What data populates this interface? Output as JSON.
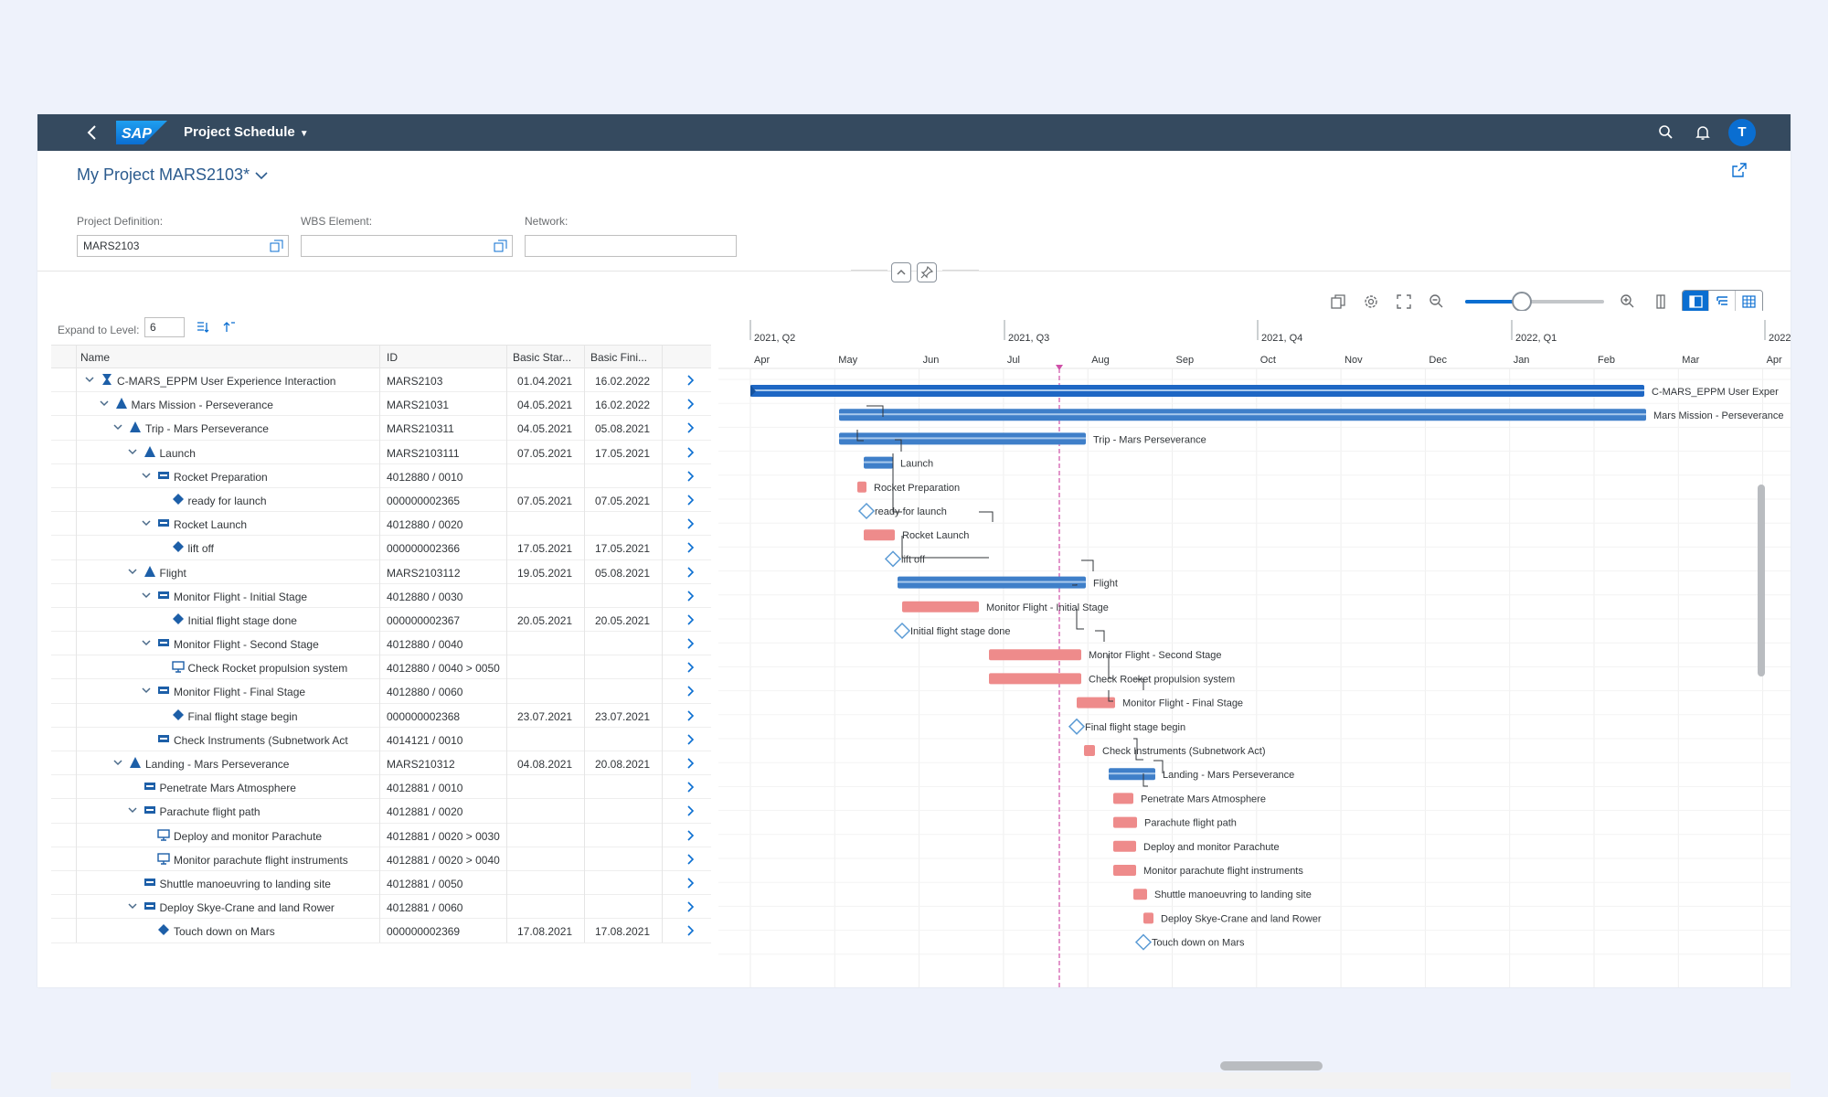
{
  "shell": {
    "title": "Project Schedule",
    "avatar_initial": "T",
    "logo_text": "SAP"
  },
  "header": {
    "project_title": "My Project MARS2103*",
    "fields": {
      "project_definition_label": "Project Definition:",
      "project_definition_value": "MARS2103",
      "wbs_label": "WBS Element:",
      "wbs_value": "",
      "network_label": "Network:",
      "network_value": ""
    }
  },
  "tree_toolbar": {
    "expand_label": "Expand to Level:",
    "expand_value": "6"
  },
  "table": {
    "columns": [
      "Name",
      "ID",
      "Basic Star...",
      "Basic Fini..."
    ],
    "rows": [
      {
        "level": 0,
        "type": "project",
        "expand": true,
        "name": "C-MARS_EPPM User Experience Interaction",
        "id": "MARS2103",
        "start": "01.04.2021",
        "finish": "16.02.2022"
      },
      {
        "level": 1,
        "type": "wbs",
        "expand": true,
        "name": "Mars Mission - Perseverance",
        "id": "MARS21031",
        "start": "04.05.2021",
        "finish": "16.02.2022"
      },
      {
        "level": 2,
        "type": "wbs",
        "expand": true,
        "name": "Trip - Mars Perseverance",
        "id": "MARS210311",
        "start": "04.05.2021",
        "finish": "05.08.2021"
      },
      {
        "level": 3,
        "type": "wbs",
        "expand": true,
        "name": "Launch",
        "id": "MARS2103111",
        "start": "07.05.2021",
        "finish": "17.05.2021"
      },
      {
        "level": 4,
        "type": "activity",
        "expand": true,
        "name": "Rocket Preparation",
        "id": "4012880 / 0010",
        "start": "",
        "finish": ""
      },
      {
        "level": 5,
        "type": "milestone",
        "expand": false,
        "name": "ready for launch",
        "id": "000000002365",
        "start": "07.05.2021",
        "finish": "07.05.2021"
      },
      {
        "level": 4,
        "type": "activity",
        "expand": true,
        "name": "Rocket Launch",
        "id": "4012880 / 0020",
        "start": "",
        "finish": ""
      },
      {
        "level": 5,
        "type": "milestone",
        "expand": false,
        "name": "lift off",
        "id": "000000002366",
        "start": "17.05.2021",
        "finish": "17.05.2021"
      },
      {
        "level": 3,
        "type": "wbs",
        "expand": true,
        "name": "Flight",
        "id": "MARS2103112",
        "start": "19.05.2021",
        "finish": "05.08.2021"
      },
      {
        "level": 4,
        "type": "activity",
        "expand": true,
        "name": "Monitor Flight - Initial Stage",
        "id": "4012880 / 0030",
        "start": "",
        "finish": ""
      },
      {
        "level": 5,
        "type": "milestone",
        "expand": false,
        "name": "Initial flight stage done",
        "id": "000000002367",
        "start": "20.05.2021",
        "finish": "20.05.2021"
      },
      {
        "level": 4,
        "type": "activity",
        "expand": true,
        "name": "Monitor Flight - Second Stage",
        "id": "4012880 / 0040",
        "start": "",
        "finish": ""
      },
      {
        "level": 5,
        "type": "element",
        "expand": false,
        "name": "Check Rocket propulsion system",
        "id": "4012880 / 0040 > 0050",
        "start": "",
        "finish": ""
      },
      {
        "level": 4,
        "type": "activity",
        "expand": true,
        "name": "Monitor Flight - Final Stage",
        "id": "4012880 / 0060",
        "start": "",
        "finish": ""
      },
      {
        "level": 5,
        "type": "milestone",
        "expand": false,
        "name": "Final flight stage begin",
        "id": "000000002368",
        "start": "23.07.2021",
        "finish": "23.07.2021"
      },
      {
        "level": 4,
        "type": "activity",
        "expand": false,
        "name": "Check Instruments (Subnetwork Act",
        "id": "4014121 / 0010",
        "start": "",
        "finish": ""
      },
      {
        "level": 2,
        "type": "wbs",
        "expand": true,
        "name": "Landing - Mars Perseverance",
        "id": "MARS210312",
        "start": "04.08.2021",
        "finish": "20.08.2021"
      },
      {
        "level": 3,
        "type": "activity",
        "expand": false,
        "name": "Penetrate Mars Atmosphere",
        "id": "4012881 / 0010",
        "start": "",
        "finish": ""
      },
      {
        "level": 3,
        "type": "activity",
        "expand": true,
        "name": "Parachute flight path",
        "id": "4012881 / 0020",
        "start": "",
        "finish": ""
      },
      {
        "level": 4,
        "type": "element",
        "expand": false,
        "name": "Deploy and monitor Parachute",
        "id": "4012881 / 0020 > 0030",
        "start": "",
        "finish": ""
      },
      {
        "level": 4,
        "type": "element",
        "expand": false,
        "name": "Monitor parachute flight instruments",
        "id": "4012881 / 0020 > 0040",
        "start": "",
        "finish": ""
      },
      {
        "level": 3,
        "type": "activity",
        "expand": false,
        "name": "Shuttle manoeuvring to landing site",
        "id": "4012881 / 0050",
        "start": "",
        "finish": ""
      },
      {
        "level": 3,
        "type": "activity",
        "expand": true,
        "name": "Deploy Skye-Crane and land Rower",
        "id": "4012881 / 0060",
        "start": "",
        "finish": ""
      },
      {
        "level": 4,
        "type": "milestone",
        "expand": false,
        "name": "Touch down on Mars",
        "id": "000000002369",
        "start": "17.08.2021",
        "finish": "17.08.2021"
      }
    ]
  },
  "gantt": {
    "quarters": [
      "2021, Q2",
      "2021, Q3",
      "2021, Q4",
      "2022, Q1",
      "2022"
    ],
    "months": [
      "Apr",
      "May",
      "Jun",
      "Jul",
      "Aug",
      "Sep",
      "Oct",
      "Nov",
      "Dec",
      "Jan",
      "Feb",
      "Mar",
      "Apr"
    ],
    "labels": [
      "C-MARS_EPPM User Exper",
      "Mars Mission - Perseverance",
      "Trip - Mars Perseverance",
      "Launch",
      "Rocket Preparation",
      "ready for launch",
      "Rocket Launch",
      "lift off",
      "Flight",
      "Monitor Flight - Initial Stage",
      "Initial flight stage done",
      "Monitor Flight - Second Stage",
      "Check Rocket propulsion system",
      "Monitor Flight - Final Stage",
      "Final flight stage begin",
      "Check Instruments (Subnetwork Act)",
      "Landing - Mars Perseverance",
      "Penetrate Mars Atmosphere",
      "Parachute flight path",
      "Deploy and monitor Parachute",
      "Monitor parachute flight instruments",
      "Shuttle manoeuvring to landing site",
      "Deploy Skye-Crane and land Rower",
      "Touch down on Mars"
    ],
    "colors": {
      "summary": "#3f7fc9",
      "summary_dark": "#1e67c4",
      "activity": "#ee8b8b",
      "milestone": "#5b9bd5",
      "today_line": "#cf4fa8"
    }
  }
}
